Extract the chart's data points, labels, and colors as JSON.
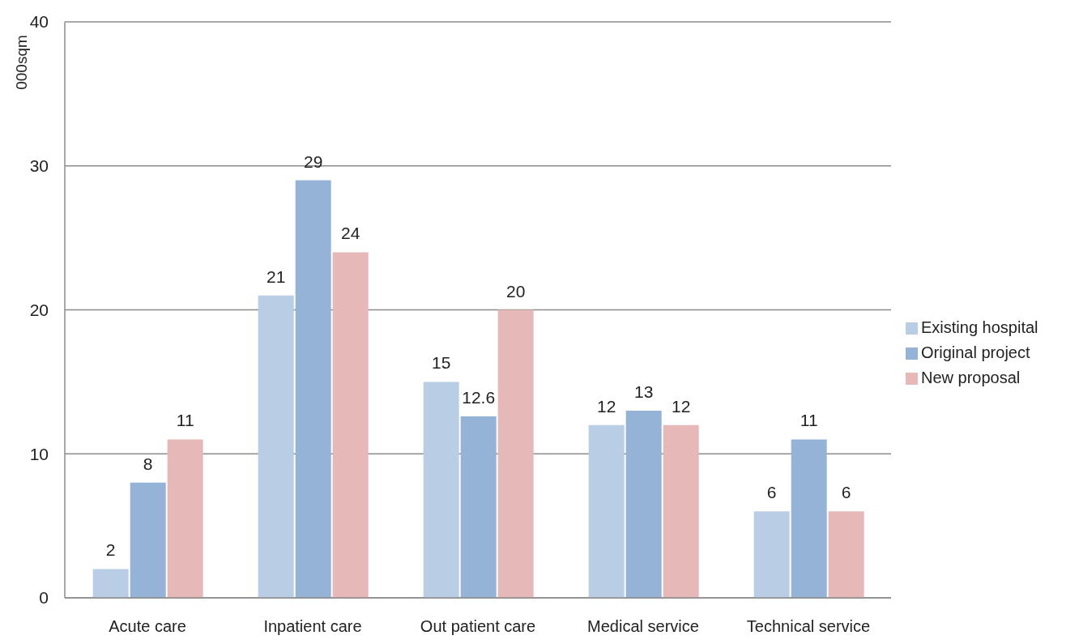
{
  "chart_data": {
    "type": "bar",
    "ylabel": "000sqm",
    "categories": [
      "Acute care",
      "Inpatient care",
      "Out patient care",
      "Medical service",
      "Technical service"
    ],
    "series": [
      {
        "name": "Existing hospital",
        "color": "#b9cde5",
        "values": [
          2,
          21,
          15,
          12,
          6
        ]
      },
      {
        "name": "Original project",
        "color": "#95b3d7",
        "values": [
          8,
          29,
          12.6,
          13,
          11
        ]
      },
      {
        "name": "New proposal",
        "color": "#e6b9b8",
        "values": [
          11,
          24,
          20,
          12,
          6
        ]
      }
    ],
    "ylim": [
      0,
      40
    ],
    "yticks": [
      0,
      10,
      20,
      30,
      40
    ],
    "grid": "y",
    "legend": "right",
    "data_labels": true
  }
}
